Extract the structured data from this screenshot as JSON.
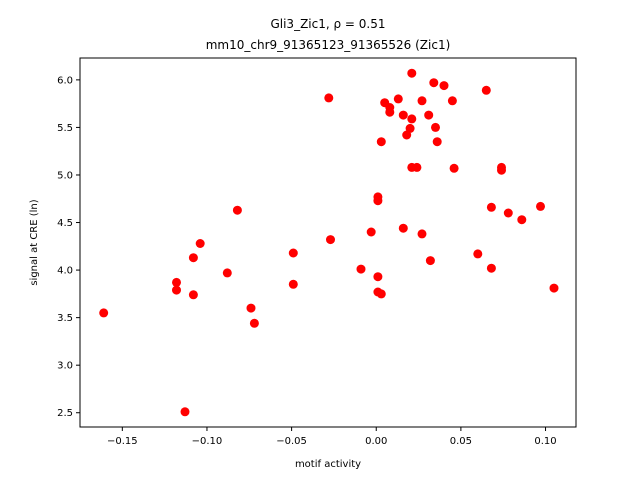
{
  "chart_data": {
    "type": "scatter",
    "title_line1": "Gli3_Zic1, ρ = 0.51",
    "title_line2": "mm10_chr9_91365123_91365526 (Zic1)",
    "xlabel": "motif activity",
    "ylabel": "signal at CRE (ln)",
    "xlim": [
      -0.175,
      0.118
    ],
    "ylim": [
      2.35,
      6.23
    ],
    "xticks": [
      -0.15,
      -0.1,
      -0.05,
      0.0,
      0.05,
      0.1
    ],
    "xtick_labels": [
      "−0.15",
      "−0.10",
      "−0.05",
      "0.00",
      "0.05",
      "0.10"
    ],
    "yticks": [
      2.5,
      3.0,
      3.5,
      4.0,
      4.5,
      5.0,
      5.5,
      6.0
    ],
    "ytick_labels": [
      "2.5",
      "3.0",
      "3.5",
      "4.0",
      "4.5",
      "5.0",
      "5.5",
      "6.0"
    ],
    "marker_color": "#ff0000",
    "grid": false,
    "points": [
      {
        "x": -0.161,
        "y": 3.55
      },
      {
        "x": -0.118,
        "y": 3.87
      },
      {
        "x": -0.118,
        "y": 3.79
      },
      {
        "x": -0.113,
        "y": 2.51
      },
      {
        "x": -0.108,
        "y": 4.13
      },
      {
        "x": -0.108,
        "y": 3.74
      },
      {
        "x": -0.104,
        "y": 4.28
      },
      {
        "x": -0.088,
        "y": 3.97
      },
      {
        "x": -0.082,
        "y": 4.63
      },
      {
        "x": -0.074,
        "y": 3.6
      },
      {
        "x": -0.072,
        "y": 3.44
      },
      {
        "x": -0.049,
        "y": 4.18
      },
      {
        "x": -0.049,
        "y": 3.85
      },
      {
        "x": -0.028,
        "y": 5.81
      },
      {
        "x": -0.027,
        "y": 4.32
      },
      {
        "x": -0.009,
        "y": 4.01
      },
      {
        "x": -0.003,
        "y": 4.4
      },
      {
        "x": 0.001,
        "y": 4.77
      },
      {
        "x": 0.001,
        "y": 4.73
      },
      {
        "x": 0.001,
        "y": 3.93
      },
      {
        "x": 0.001,
        "y": 3.77
      },
      {
        "x": 0.003,
        "y": 3.75
      },
      {
        "x": 0.003,
        "y": 5.35
      },
      {
        "x": 0.005,
        "y": 5.76
      },
      {
        "x": 0.008,
        "y": 5.71
      },
      {
        "x": 0.008,
        "y": 5.66
      },
      {
        "x": 0.013,
        "y": 5.8
      },
      {
        "x": 0.016,
        "y": 5.63
      },
      {
        "x": 0.016,
        "y": 4.44
      },
      {
        "x": 0.018,
        "y": 5.42
      },
      {
        "x": 0.02,
        "y": 5.49
      },
      {
        "x": 0.021,
        "y": 6.07
      },
      {
        "x": 0.021,
        "y": 5.59
      },
      {
        "x": 0.021,
        "y": 5.08
      },
      {
        "x": 0.024,
        "y": 5.08
      },
      {
        "x": 0.027,
        "y": 5.78
      },
      {
        "x": 0.027,
        "y": 4.38
      },
      {
        "x": 0.031,
        "y": 5.63
      },
      {
        "x": 0.032,
        "y": 4.1
      },
      {
        "x": 0.034,
        "y": 5.97
      },
      {
        "x": 0.035,
        "y": 5.5
      },
      {
        "x": 0.036,
        "y": 5.35
      },
      {
        "x": 0.04,
        "y": 5.94
      },
      {
        "x": 0.045,
        "y": 5.78
      },
      {
        "x": 0.046,
        "y": 5.07
      },
      {
        "x": 0.06,
        "y": 4.17
      },
      {
        "x": 0.065,
        "y": 5.89
      },
      {
        "x": 0.068,
        "y": 4.66
      },
      {
        "x": 0.068,
        "y": 4.02
      },
      {
        "x": 0.074,
        "y": 5.08
      },
      {
        "x": 0.074,
        "y": 5.05
      },
      {
        "x": 0.078,
        "y": 4.6
      },
      {
        "x": 0.086,
        "y": 4.53
      },
      {
        "x": 0.097,
        "y": 4.67
      },
      {
        "x": 0.105,
        "y": 3.81
      }
    ]
  }
}
